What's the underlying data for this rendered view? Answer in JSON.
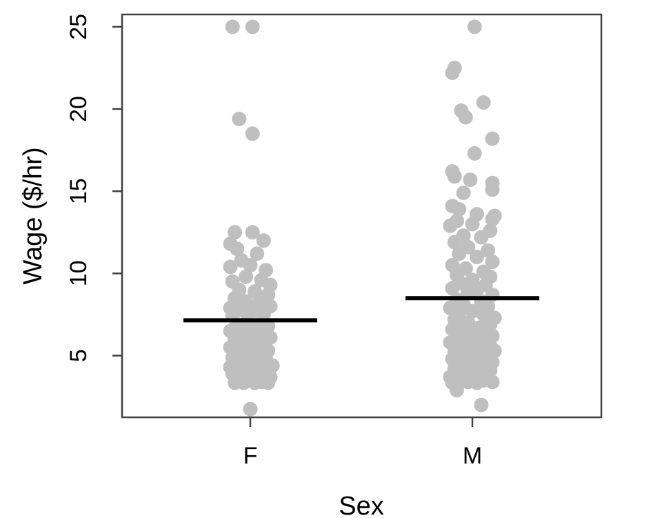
{
  "chart_data": {
    "type": "scatter",
    "title": "",
    "xlabel": "Sex",
    "ylabel": "Wage ($/hr)",
    "categories": [
      "F",
      "M"
    ],
    "yticks": [
      5,
      10,
      15,
      20,
      25
    ],
    "ylim": [
      1.25,
      25.75
    ],
    "grid": false,
    "point_color": "#bfbfbf",
    "mean_color": "#000000",
    "series": [
      {
        "category": "F",
        "mean": 7.15,
        "points": [
          {
            "dx": -0.08,
            "y": 25.0
          },
          {
            "dx": 0.01,
            "y": 25.0
          },
          {
            "dx": -0.05,
            "y": 19.4
          },
          {
            "dx": 0.01,
            "y": 18.5
          },
          {
            "dx": -0.07,
            "y": 12.5
          },
          {
            "dx": 0.01,
            "y": 12.5
          },
          {
            "dx": 0.06,
            "y": 12.0
          },
          {
            "dx": -0.09,
            "y": 11.8
          },
          {
            "dx": -0.06,
            "y": 11.5
          },
          {
            "dx": 0.03,
            "y": 11.2
          },
          {
            "dx": -0.04,
            "y": 10.8
          },
          {
            "dx": 0.0,
            "y": 10.5
          },
          {
            "dx": -0.09,
            "y": 10.4
          },
          {
            "dx": 0.07,
            "y": 10.2
          },
          {
            "dx": -0.02,
            "y": 9.8
          },
          {
            "dx": 0.05,
            "y": 9.6
          },
          {
            "dx": -0.08,
            "y": 9.5
          },
          {
            "dx": 0.09,
            "y": 9.3
          },
          {
            "dx": -0.05,
            "y": 9.0
          },
          {
            "dx": 0.02,
            "y": 8.9
          },
          {
            "dx": 0.08,
            "y": 8.7
          },
          {
            "dx": -0.07,
            "y": 8.5
          },
          {
            "dx": -0.02,
            "y": 8.3
          },
          {
            "dx": 0.04,
            "y": 8.2
          },
          {
            "dx": 0.09,
            "y": 8.0
          },
          {
            "dx": -0.09,
            "y": 7.9
          },
          {
            "dx": -0.04,
            "y": 7.8
          },
          {
            "dx": 0.01,
            "y": 7.7
          },
          {
            "dx": 0.06,
            "y": 7.5
          },
          {
            "dx": -0.08,
            "y": 7.4
          },
          {
            "dx": -0.01,
            "y": 7.2
          },
          {
            "dx": 0.05,
            "y": 7.0
          },
          {
            "dx": -0.06,
            "y": 6.9
          },
          {
            "dx": 0.08,
            "y": 6.8
          },
          {
            "dx": 0.0,
            "y": 6.6
          },
          {
            "dx": -0.09,
            "y": 6.5
          },
          {
            "dx": 0.04,
            "y": 6.4
          },
          {
            "dx": -0.03,
            "y": 6.2
          },
          {
            "dx": 0.09,
            "y": 6.1
          },
          {
            "dx": -0.07,
            "y": 6.0
          },
          {
            "dx": 0.02,
            "y": 5.9
          },
          {
            "dx": -0.04,
            "y": 5.7
          },
          {
            "dx": 0.06,
            "y": 5.6
          },
          {
            "dx": -0.09,
            "y": 5.5
          },
          {
            "dx": 0.0,
            "y": 5.4
          },
          {
            "dx": 0.08,
            "y": 5.3
          },
          {
            "dx": -0.05,
            "y": 5.1
          },
          {
            "dx": 0.03,
            "y": 5.0
          },
          {
            "dx": -0.08,
            "y": 4.9
          },
          {
            "dx": 0.07,
            "y": 4.8
          },
          {
            "dx": -0.02,
            "y": 4.7
          },
          {
            "dx": 0.05,
            "y": 4.6
          },
          {
            "dx": -0.06,
            "y": 4.5
          },
          {
            "dx": 0.1,
            "y": 4.4
          },
          {
            "dx": -0.09,
            "y": 4.3
          },
          {
            "dx": 0.01,
            "y": 4.2
          },
          {
            "dx": -0.04,
            "y": 4.1
          },
          {
            "dx": 0.06,
            "y": 4.0
          },
          {
            "dx": -0.08,
            "y": 3.9
          },
          {
            "dx": 0.03,
            "y": 3.8
          },
          {
            "dx": 0.09,
            "y": 3.7
          },
          {
            "dx": -0.05,
            "y": 3.6
          },
          {
            "dx": -0.01,
            "y": 3.5
          },
          {
            "dx": 0.05,
            "y": 3.4
          },
          {
            "dx": -0.07,
            "y": 3.35
          },
          {
            "dx": 0.08,
            "y": 3.35
          },
          {
            "dx": -0.03,
            "y": 3.35
          },
          {
            "dx": 0.02,
            "y": 3.35
          },
          {
            "dx": 0.0,
            "y": 1.75
          }
        ]
      },
      {
        "category": "M",
        "mean": 8.5,
        "points": [
          {
            "dx": 0.01,
            "y": 25.0
          },
          {
            "dx": -0.08,
            "y": 22.5
          },
          {
            "dx": -0.09,
            "y": 22.2
          },
          {
            "dx": 0.05,
            "y": 20.4
          },
          {
            "dx": -0.05,
            "y": 19.9
          },
          {
            "dx": -0.03,
            "y": 19.5
          },
          {
            "dx": 0.09,
            "y": 18.2
          },
          {
            "dx": 0.01,
            "y": 17.3
          },
          {
            "dx": -0.09,
            "y": 16.2
          },
          {
            "dx": -0.08,
            "y": 15.9
          },
          {
            "dx": -0.01,
            "y": 15.7
          },
          {
            "dx": 0.09,
            "y": 15.5
          },
          {
            "dx": 0.09,
            "y": 15.1
          },
          {
            "dx": -0.04,
            "y": 14.9
          },
          {
            "dx": -0.09,
            "y": 14.1
          },
          {
            "dx": -0.06,
            "y": 13.9
          },
          {
            "dx": 0.02,
            "y": 13.6
          },
          {
            "dx": 0.1,
            "y": 13.5
          },
          {
            "dx": 0.09,
            "y": 13.3
          },
          {
            "dx": -0.07,
            "y": 13.2
          },
          {
            "dx": 0.0,
            "y": 13.0
          },
          {
            "dx": -0.1,
            "y": 12.9
          },
          {
            "dx": 0.08,
            "y": 12.6
          },
          {
            "dx": -0.04,
            "y": 12.3
          },
          {
            "dx": 0.04,
            "y": 12.2
          },
          {
            "dx": -0.08,
            "y": 11.9
          },
          {
            "dx": -0.02,
            "y": 11.6
          },
          {
            "dx": 0.07,
            "y": 11.4
          },
          {
            "dx": -0.06,
            "y": 11.2
          },
          {
            "dx": 0.02,
            "y": 11.0
          },
          {
            "dx": 0.09,
            "y": 10.7
          },
          {
            "dx": -0.09,
            "y": 10.5
          },
          {
            "dx": -0.03,
            "y": 10.3
          },
          {
            "dx": 0.05,
            "y": 10.1
          },
          {
            "dx": -0.07,
            "y": 9.9
          },
          {
            "dx": 0.08,
            "y": 9.8
          },
          {
            "dx": 0.0,
            "y": 9.6
          },
          {
            "dx": -0.05,
            "y": 9.4
          },
          {
            "dx": 0.06,
            "y": 9.3
          },
          {
            "dx": -0.09,
            "y": 9.1
          },
          {
            "dx": 0.02,
            "y": 9.0
          },
          {
            "dx": -0.02,
            "y": 8.8
          },
          {
            "dx": 0.09,
            "y": 8.7
          },
          {
            "dx": -0.07,
            "y": 8.4
          },
          {
            "dx": 0.04,
            "y": 8.3
          },
          {
            "dx": -0.04,
            "y": 8.1
          },
          {
            "dx": 0.07,
            "y": 8.0
          },
          {
            "dx": -0.1,
            "y": 7.9
          },
          {
            "dx": 0.0,
            "y": 7.7
          },
          {
            "dx": -0.06,
            "y": 7.6
          },
          {
            "dx": 0.05,
            "y": 7.5
          },
          {
            "dx": 0.1,
            "y": 7.3
          },
          {
            "dx": -0.08,
            "y": 7.2
          },
          {
            "dx": -0.02,
            "y": 7.0
          },
          {
            "dx": 0.08,
            "y": 6.9
          },
          {
            "dx": -0.05,
            "y": 6.8
          },
          {
            "dx": 0.03,
            "y": 6.7
          },
          {
            "dx": -0.09,
            "y": 6.6
          },
          {
            "dx": 0.06,
            "y": 6.5
          },
          {
            "dx": -0.01,
            "y": 6.4
          },
          {
            "dx": -0.07,
            "y": 6.3
          },
          {
            "dx": 0.09,
            "y": 6.2
          },
          {
            "dx": 0.01,
            "y": 6.1
          },
          {
            "dx": -0.04,
            "y": 6.0
          },
          {
            "dx": 0.05,
            "y": 5.9
          },
          {
            "dx": -0.1,
            "y": 5.8
          },
          {
            "dx": -0.02,
            "y": 5.7
          },
          {
            "dx": 0.08,
            "y": 5.6
          },
          {
            "dx": -0.06,
            "y": 5.5
          },
          {
            "dx": 0.03,
            "y": 5.4
          },
          {
            "dx": 0.1,
            "y": 5.3
          },
          {
            "dx": -0.08,
            "y": 5.2
          },
          {
            "dx": 0.0,
            "y": 5.1
          },
          {
            "dx": -0.04,
            "y": 5.0
          },
          {
            "dx": 0.06,
            "y": 4.9
          },
          {
            "dx": -0.09,
            "y": 4.8
          },
          {
            "dx": 0.02,
            "y": 4.7
          },
          {
            "dx": 0.09,
            "y": 4.6
          },
          {
            "dx": -0.06,
            "y": 4.5
          },
          {
            "dx": -0.01,
            "y": 4.4
          },
          {
            "dx": 0.05,
            "y": 4.3
          },
          {
            "dx": -0.08,
            "y": 4.2
          },
          {
            "dx": 0.08,
            "y": 4.1
          },
          {
            "dx": -0.03,
            "y": 4.0
          },
          {
            "dx": 0.03,
            "y": 3.9
          },
          {
            "dx": -0.07,
            "y": 3.8
          },
          {
            "dx": 0.07,
            "y": 3.75
          },
          {
            "dx": -0.1,
            "y": 3.7
          },
          {
            "dx": 0.0,
            "y": 3.6
          },
          {
            "dx": -0.05,
            "y": 3.5
          },
          {
            "dx": 0.05,
            "y": 3.5
          },
          {
            "dx": -0.02,
            "y": 3.4
          },
          {
            "dx": 0.09,
            "y": 3.4
          },
          {
            "dx": -0.09,
            "y": 3.35
          },
          {
            "dx": 0.02,
            "y": 3.35
          },
          {
            "dx": -0.07,
            "y": 2.9
          },
          {
            "dx": 0.04,
            "y": 2.0
          }
        ]
      }
    ]
  }
}
